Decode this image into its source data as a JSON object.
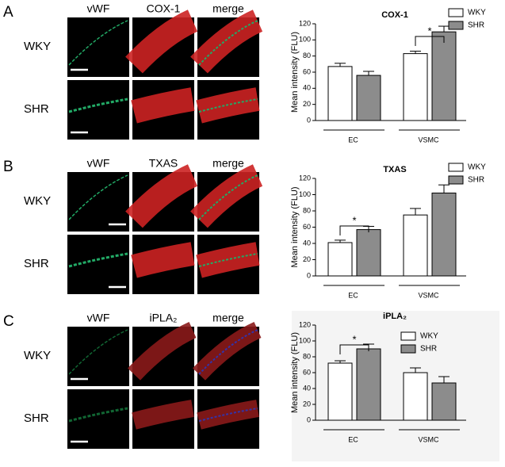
{
  "panels": [
    {
      "label": "A",
      "columns": [
        "vWF",
        "COX-1",
        "merge"
      ],
      "rows": [
        "WKY",
        "SHR"
      ]
    },
    {
      "label": "B",
      "columns": [
        "vWF",
        "TXAS",
        "merge"
      ],
      "rows": [
        "WKY",
        "SHR"
      ]
    },
    {
      "label": "C",
      "columns": [
        "vWF",
        "iPLA₂",
        "merge"
      ],
      "rows": [
        "WKY",
        "SHR"
      ]
    }
  ],
  "chart_data": [
    {
      "type": "bar",
      "title": "COX-1",
      "y_label": "Mean intensity (FLU)",
      "categories": [
        "EC",
        "VSMC"
      ],
      "series": [
        {
          "name": "WKY",
          "color": "#ffffff",
          "values": [
            67,
            83
          ],
          "errors": [
            4,
            3
          ]
        },
        {
          "name": "SHR",
          "color": "#8c8c8c",
          "values": [
            56,
            110
          ],
          "errors": [
            5,
            7
          ]
        }
      ],
      "annotation": "*",
      "ylim": [
        0,
        120
      ],
      "yticks": [
        0,
        20,
        40,
        60,
        80,
        100,
        120
      ]
    },
    {
      "type": "bar",
      "title": "TXAS",
      "y_label": "Mean intensity (FLU)",
      "categories": [
        "EC",
        "VSMC"
      ],
      "series": [
        {
          "name": "WKY",
          "color": "#ffffff",
          "values": [
            41,
            75
          ],
          "errors": [
            3,
            8
          ]
        },
        {
          "name": "SHR",
          "color": "#8c8c8c",
          "values": [
            57,
            102
          ],
          "errors": [
            4,
            10
          ]
        }
      ],
      "annotation": "*",
      "ylim": [
        0,
        120
      ],
      "yticks": [
        0,
        20,
        40,
        60,
        80,
        100,
        120
      ]
    },
    {
      "type": "bar",
      "title": "iPLA₂",
      "y_label": "Mean intensity (FLU)",
      "categories": [
        "EC",
        "VSMC"
      ],
      "series": [
        {
          "name": "WKY",
          "color": "#ffffff",
          "values": [
            72,
            60
          ],
          "errors": [
            3,
            6
          ]
        },
        {
          "name": "SHR",
          "color": "#8c8c8c",
          "values": [
            90,
            47
          ],
          "errors": [
            6,
            8
          ]
        }
      ],
      "annotation": "*",
      "ylim": [
        0,
        120
      ],
      "yticks": [
        0,
        20,
        40,
        60,
        80,
        100,
        120
      ]
    }
  ]
}
